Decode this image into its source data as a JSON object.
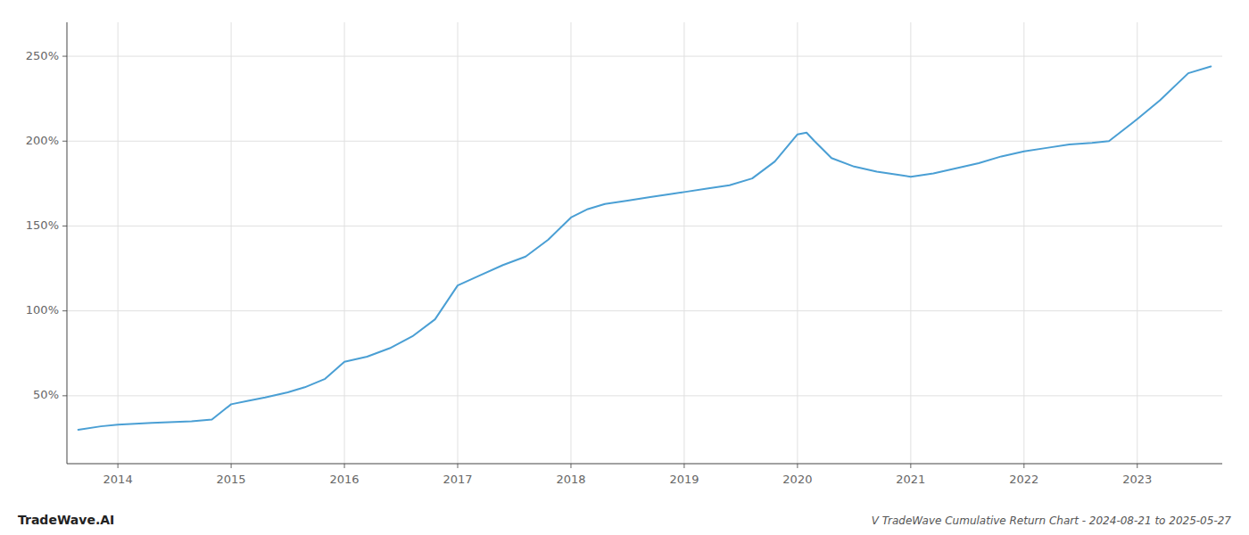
{
  "chart_data": {
    "type": "line",
    "title": "V TradeWave Cumulative Return Chart - 2024-08-21 to 2025-05-27",
    "annotations": [
      "TradeWave.AI"
    ],
    "color": "#4a9fd4",
    "grid": true,
    "xlim": [
      2013.55,
      2023.75
    ],
    "xticks": [
      2014,
      2015,
      2016,
      2017,
      2018,
      2019,
      2020,
      2021,
      2022,
      2023
    ],
    "ylim": [
      10,
      270
    ],
    "yticks": [
      {
        "value": 50,
        "label": "50%"
      },
      {
        "value": 100,
        "label": "100%"
      },
      {
        "value": 150,
        "label": "150%"
      },
      {
        "value": 200,
        "label": "200%"
      },
      {
        "value": 250,
        "label": "250%"
      }
    ],
    "x": [
      2013.65,
      2013.85,
      2014.0,
      2014.3,
      2014.5,
      2014.65,
      2014.83,
      2015.0,
      2015.15,
      2015.3,
      2015.5,
      2015.65,
      2015.83,
      2016.0,
      2016.2,
      2016.4,
      2016.6,
      2016.8,
      2017.0,
      2017.2,
      2017.4,
      2017.6,
      2017.8,
      2018.0,
      2018.15,
      2018.3,
      2018.5,
      2018.7,
      2018.9,
      2019.0,
      2019.2,
      2019.4,
      2019.6,
      2019.8,
      2020.0,
      2020.08,
      2020.15,
      2020.3,
      2020.5,
      2020.7,
      2020.9,
      2021.0,
      2021.2,
      2021.4,
      2021.6,
      2021.8,
      2022.0,
      2022.2,
      2022.4,
      2022.6,
      2022.75,
      2023.0,
      2023.2,
      2023.45,
      2023.65
    ],
    "values": [
      30,
      32,
      33,
      34,
      34.5,
      35,
      36,
      45,
      47,
      49,
      52,
      55,
      60,
      70,
      73,
      78,
      85,
      95,
      115,
      121,
      127,
      132,
      142,
      155,
      160,
      163,
      165,
      167,
      169,
      170,
      172,
      174,
      178,
      188,
      204,
      205,
      200,
      190,
      185,
      182,
      180,
      179,
      181,
      184,
      187,
      191,
      194,
      196,
      198,
      199,
      200,
      213,
      224,
      240,
      244
    ]
  }
}
